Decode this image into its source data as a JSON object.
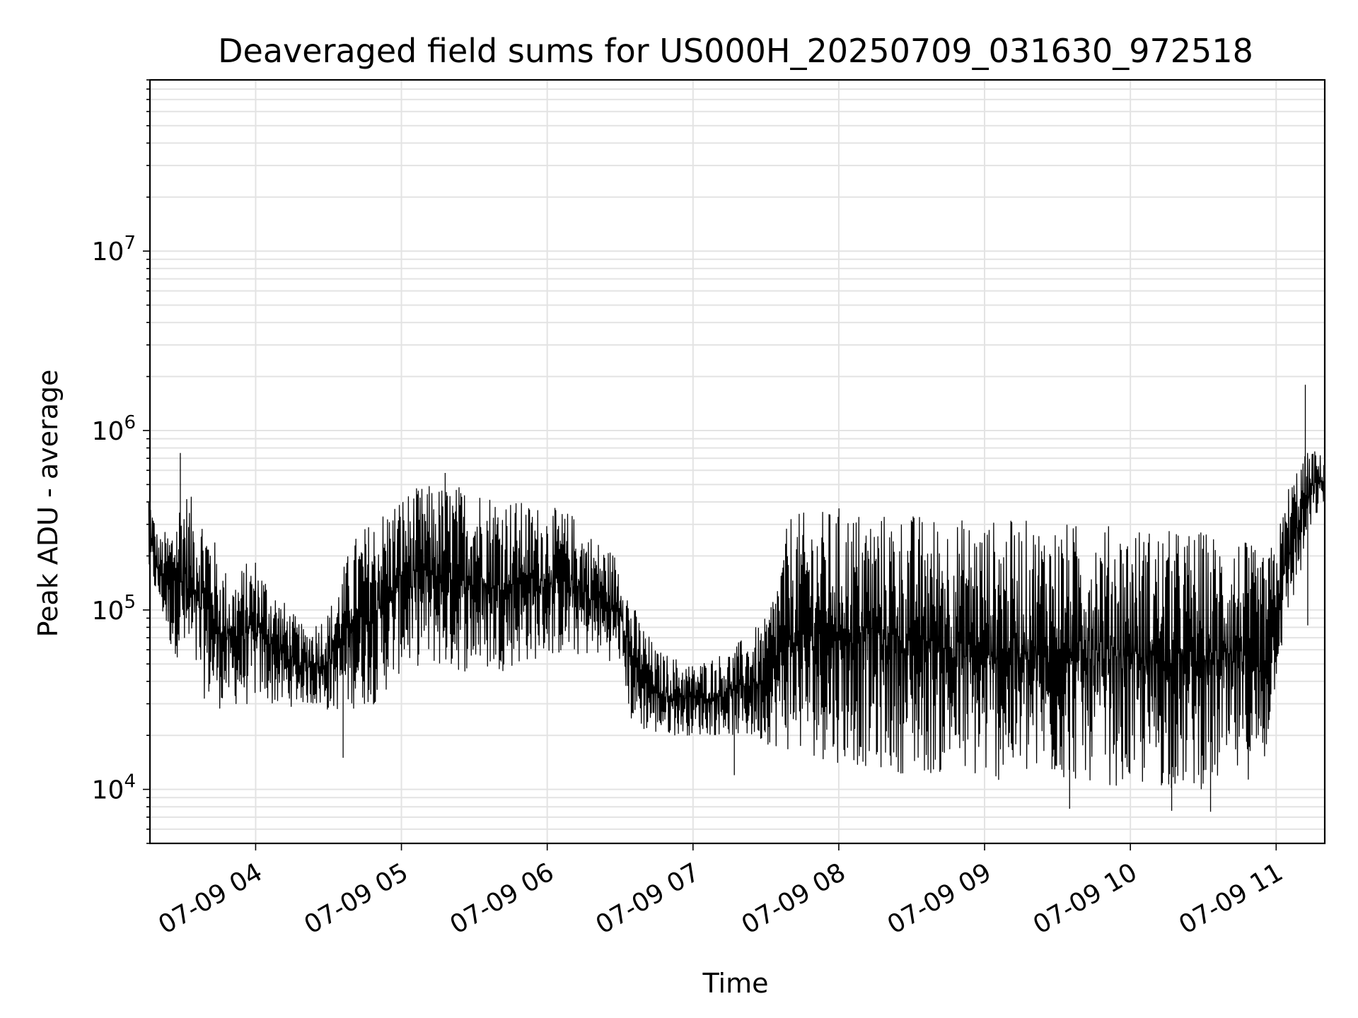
{
  "chart_data": {
    "type": "line",
    "title": "Deaveraged field sums for US000H_20250709_031630_972518",
    "xlabel": "Time",
    "ylabel": "Peak ADU - average",
    "yscale": "log",
    "ylim": [
      5000,
      90000000
    ],
    "xlim": [
      "2025-07-09 03:16:30",
      "2025-07-09 11:20:00"
    ],
    "grid": true,
    "line_color": "#000000",
    "x_ticks": [
      "07-09 04",
      "07-09 05",
      "07-09 06",
      "07-09 07",
      "07-09 08",
      "07-09 09",
      "07-09 10",
      "07-09 11"
    ],
    "y_ticks": [
      {
        "base": "10",
        "exp": "4"
      },
      {
        "base": "10",
        "exp": "5"
      },
      {
        "base": "10",
        "exp": "6"
      },
      {
        "base": "10",
        "exp": "7"
      }
    ],
    "series": [
      {
        "x": [
          "2025-07-09 03:16",
          "2025-07-09 03:20",
          "2025-07-09 03:25",
          "2025-07-09 03:30",
          "2025-07-09 03:35",
          "2025-07-09 03:40",
          "2025-07-09 03:45",
          "2025-07-09 03:50",
          "2025-07-09 03:55",
          "2025-07-09 04:00",
          "2025-07-09 04:10",
          "2025-07-09 04:20",
          "2025-07-09 04:30",
          "2025-07-09 04:40",
          "2025-07-09 04:50",
          "2025-07-09 05:00",
          "2025-07-09 05:10",
          "2025-07-09 05:20",
          "2025-07-09 05:30",
          "2025-07-09 05:40",
          "2025-07-09 05:50",
          "2025-07-09 06:00",
          "2025-07-09 06:10",
          "2025-07-09 06:20",
          "2025-07-09 06:30",
          "2025-07-09 06:35",
          "2025-07-09 06:45",
          "2025-07-09 07:00",
          "2025-07-09 07:15",
          "2025-07-09 07:30",
          "2025-07-09 07:40",
          "2025-07-09 07:50",
          "2025-07-09 08:00",
          "2025-07-09 08:15",
          "2025-07-09 08:30",
          "2025-07-09 08:45",
          "2025-07-09 09:00",
          "2025-07-09 09:15",
          "2025-07-09 09:30",
          "2025-07-09 09:45",
          "2025-07-09 10:00",
          "2025-07-09 10:15",
          "2025-07-09 10:30",
          "2025-07-09 10:45",
          "2025-07-09 10:55",
          "2025-07-09 11:00",
          "2025-07-09 11:05",
          "2025-07-09 11:10",
          "2025-07-09 11:15",
          "2025-07-09 11:20"
        ],
        "lo": [
          150000,
          110000,
          60000,
          50000,
          40000,
          30000,
          28000,
          30000,
          28000,
          32000,
          28000,
          30000,
          27000,
          28000,
          30000,
          45000,
          50000,
          45000,
          45000,
          45000,
          50000,
          55000,
          55000,
          55000,
          50000,
          22000,
          20000,
          20000,
          20000,
          18000,
          16000,
          15000,
          14000,
          13000,
          12000,
          12000,
          11000,
          11000,
          11000,
          11000,
          10000,
          10000,
          10000,
          11000,
          12000,
          40000,
          90000,
          150000,
          300000,
          400000
        ],
        "hi": [
          500000,
          250000,
          300000,
          500000,
          400000,
          350000,
          200000,
          150000,
          180000,
          200000,
          120000,
          80000,
          100000,
          250000,
          350000,
          450000,
          500000,
          500000,
          500000,
          450000,
          400000,
          380000,
          350000,
          250000,
          200000,
          110000,
          60000,
          50000,
          60000,
          90000,
          350000,
          350000,
          380000,
          350000,
          350000,
          330000,
          320000,
          320000,
          310000,
          300000,
          300000,
          280000,
          280000,
          260000,
          200000,
          250000,
          500000,
          700000,
          800000,
          700000
        ],
        "peaks": [
          {
            "x": "2025-07-09 03:29",
            "y": 750000
          },
          {
            "x": "2025-07-09 04:36",
            "y": 15000
          },
          {
            "x": "2025-07-09 05:18",
            "y": 580000
          },
          {
            "x": "2025-07-09 07:17",
            "y": 12000
          },
          {
            "x": "2025-07-09 09:35",
            "y": 7800
          },
          {
            "x": "2025-07-09 10:17",
            "y": 7600
          },
          {
            "x": "2025-07-09 10:33",
            "y": 7500
          },
          {
            "x": "2025-07-09 11:12",
            "y": 1800000
          },
          {
            "x": "2025-07-09 11:13",
            "y": 82000
          }
        ]
      }
    ]
  }
}
